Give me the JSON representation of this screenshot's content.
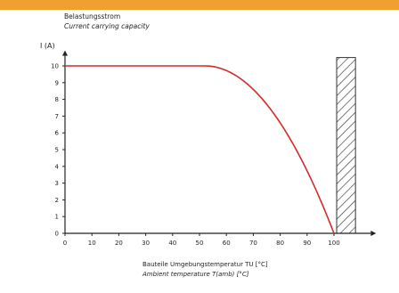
{
  "colors": {
    "top_bar": "#f0a030",
    "curve": "#d62a2a",
    "axis": "#222222",
    "hatch": "#333333"
  },
  "chart_data": {
    "type": "line",
    "title": "Belastungsstrom",
    "subtitle": "Current carrying capacity",
    "ylabel": "I (A)",
    "xlabel": "Bauteile Umgebungstemperatur TU [°C]",
    "xlabel_sub": "Ambient temperature T(amb) [°C]",
    "xlim": [
      0,
      115
    ],
    "ylim": [
      0,
      10.5
    ],
    "x_ticks": [
      "0",
      "10",
      "20",
      "30",
      "40",
      "50",
      "60",
      "70",
      "80",
      "90",
      "100"
    ],
    "y_ticks": [
      "0",
      "1",
      "2",
      "3",
      "4",
      "5",
      "6",
      "7",
      "8",
      "9",
      "10"
    ],
    "grid": false,
    "series": [
      {
        "x": [
          0,
          10,
          20,
          30,
          40,
          50,
          52,
          60,
          70,
          80,
          90,
          95,
          100
        ],
        "y": [
          10,
          10,
          10,
          10,
          10,
          10,
          10,
          9.3,
          8.0,
          6.2,
          3.7,
          2.0,
          0
        ]
      }
    ],
    "hatched_region": {
      "x_start": 101,
      "x_end": 108,
      "y_start": 0,
      "y_end": 10.5
    }
  }
}
